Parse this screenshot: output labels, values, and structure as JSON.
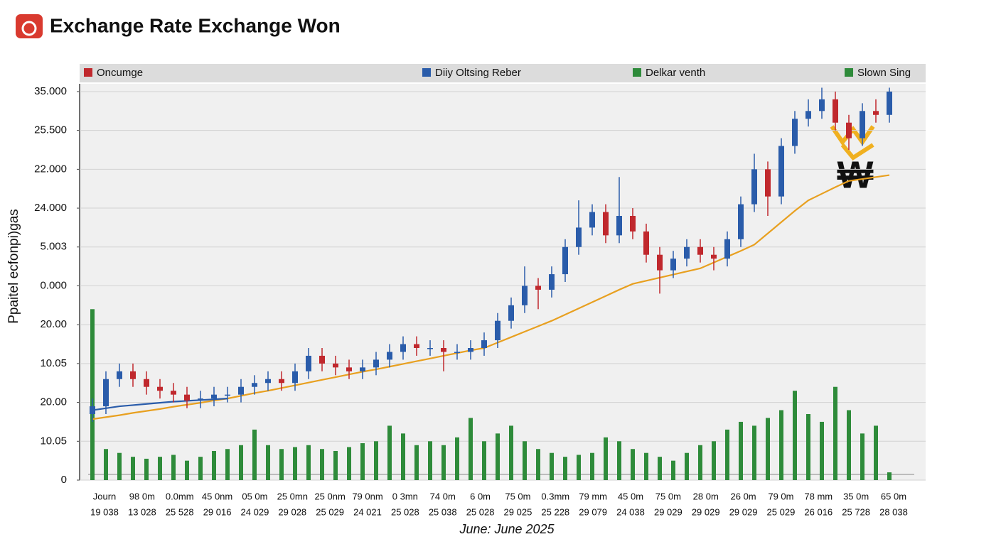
{
  "chart_data": {
    "type": "candlestick",
    "title": "Exchange Rate Exchange Won",
    "ylabel": "Ppaitel ecfonpi)gas",
    "xlabel": "June: June 2025",
    "annotation": "₩",
    "legend": [
      {
        "name": "Oncumge",
        "color": "#c0282d"
      },
      {
        "name": "Diiy Oltsing Reber",
        "color": "#2a5caa"
      },
      {
        "name": "Delkar venth",
        "color": "#2e8b3a"
      },
      {
        "name": "Slown Sing",
        "color": "#2e8b3a"
      }
    ],
    "ylim": [
      0,
      10.2
    ],
    "yticks": [
      {
        "value": 0,
        "label": "0"
      },
      {
        "value": 1,
        "label": "10.05"
      },
      {
        "value": 2,
        "label": "20.00"
      },
      {
        "value": 3,
        "label": "10.05"
      },
      {
        "value": 4,
        "label": "20.00"
      },
      {
        "value": 5,
        "label": "0.000"
      },
      {
        "value": 6,
        "label": "5.003"
      },
      {
        "value": 7,
        "label": "24.000"
      },
      {
        "value": 8,
        "label": "22.000"
      },
      {
        "value": 9,
        "label": "25.500"
      },
      {
        "value": 10,
        "label": "35.000"
      }
    ],
    "grid": true,
    "xtick_rows": [
      [
        "Journ",
        "98 0m",
        "0.0mm",
        "45 0nm",
        "05 0m",
        "25 0mn",
        "25 0nm",
        "79 0nm",
        "0 3mn",
        "74 0m",
        "6 0m",
        "75 0m",
        "0.3mm",
        "79 mm",
        "45 0m",
        "75 0m",
        "28 0m",
        "26 0m",
        "79 0m",
        "78 mm",
        "35 0m",
        "65 0m"
      ],
      [
        "19 038",
        "13 028",
        "25 528",
        "29 016",
        "24 029",
        "29 028",
        "25 029",
        "24 021",
        "25 028",
        "25 038",
        "25 028",
        "29 025",
        "25 228",
        "29 079",
        "24 038",
        "29 029",
        "29 029",
        "29 029",
        "25 029",
        "26 016",
        "25 728",
        "28 038"
      ]
    ],
    "up_color": "#2a5caa",
    "down_color": "#c0282d",
    "open": [
      1.7,
      1.9,
      2.6,
      2.8,
      2.6,
      2.4,
      2.3,
      2.2,
      2.05,
      2.1,
      2.2,
      2.2,
      2.4,
      2.5,
      2.6,
      2.5,
      2.8,
      3.2,
      3.0,
      2.9,
      2.8,
      2.9,
      3.1,
      3.3,
      3.5,
      3.4,
      3.4,
      3.3,
      3.3,
      3.4,
      3.6,
      4.1,
      4.5,
      5.0,
      4.9,
      5.3,
      6.0,
      6.5,
      6.9,
      6.3,
      6.8,
      6.4,
      5.8,
      5.4,
      5.7,
      6.0,
      5.8,
      5.7,
      6.2,
      7.1,
      8.0,
      7.3,
      8.6,
      9.3,
      9.5,
      9.8,
      9.2,
      8.8,
      9.5,
      9.4
    ],
    "high": [
      2.1,
      2.8,
      3.0,
      3.0,
      2.8,
      2.6,
      2.5,
      2.4,
      2.3,
      2.4,
      2.4,
      2.6,
      2.7,
      2.8,
      2.8,
      3.0,
      3.4,
      3.4,
      3.2,
      3.1,
      3.1,
      3.3,
      3.5,
      3.7,
      3.7,
      3.6,
      3.6,
      3.5,
      3.6,
      3.8,
      4.3,
      4.7,
      5.5,
      5.2,
      5.5,
      6.2,
      7.2,
      7.1,
      7.1,
      7.8,
      7.0,
      6.6,
      6.0,
      5.9,
      6.2,
      6.2,
      6.0,
      6.4,
      7.3,
      8.4,
      8.2,
      8.8,
      9.5,
      9.8,
      10.1,
      10.0,
      9.4,
      9.7,
      9.8,
      10.1
    ],
    "low": [
      1.5,
      1.7,
      2.4,
      2.4,
      2.2,
      2.1,
      2.0,
      1.85,
      1.85,
      1.9,
      2.0,
      2.0,
      2.2,
      2.3,
      2.3,
      2.3,
      2.6,
      2.8,
      2.7,
      2.6,
      2.6,
      2.7,
      2.9,
      3.1,
      3.2,
      3.2,
      2.8,
      3.1,
      3.1,
      3.2,
      3.4,
      3.9,
      4.3,
      4.4,
      4.7,
      5.1,
      5.8,
      6.3,
      6.1,
      6.1,
      6.2,
      5.6,
      4.8,
      5.2,
      5.5,
      5.6,
      5.4,
      5.5,
      6.0,
      6.9,
      6.8,
      7.1,
      8.4,
      9.1,
      9.3,
      9.0,
      8.5,
      8.6,
      9.2,
      9.2
    ],
    "close": [
      1.9,
      2.6,
      2.8,
      2.6,
      2.4,
      2.3,
      2.2,
      2.05,
      2.1,
      2.2,
      2.2,
      2.4,
      2.5,
      2.6,
      2.5,
      2.8,
      3.2,
      3.0,
      2.9,
      2.8,
      2.9,
      3.1,
      3.3,
      3.5,
      3.4,
      3.4,
      3.3,
      3.3,
      3.4,
      3.6,
      4.1,
      4.5,
      5.0,
      4.9,
      5.3,
      6.0,
      6.5,
      6.9,
      6.3,
      6.8,
      6.4,
      5.8,
      5.4,
      5.7,
      6.0,
      5.8,
      5.7,
      6.2,
      7.1,
      8.0,
      7.3,
      8.6,
      9.3,
      9.5,
      9.8,
      9.2,
      8.8,
      9.5,
      9.4,
      10.0
    ],
    "volume": {
      "color": "#2e8b3a",
      "values": [
        4.4,
        0.8,
        0.7,
        0.6,
        0.55,
        0.6,
        0.65,
        0.5,
        0.6,
        0.75,
        0.8,
        0.9,
        1.3,
        0.9,
        0.8,
        0.85,
        0.9,
        0.8,
        0.75,
        0.85,
        0.95,
        1.0,
        1.4,
        1.2,
        0.9,
        1.0,
        0.9,
        1.1,
        1.6,
        1.0,
        1.2,
        1.4,
        1.0,
        0.8,
        0.7,
        0.6,
        0.65,
        0.7,
        1.1,
        1.0,
        0.8,
        0.7,
        0.6,
        0.5,
        0.7,
        0.9,
        1.0,
        1.3,
        1.5,
        1.4,
        1.6,
        1.8,
        2.3,
        1.7,
        1.5,
        2.4,
        1.8,
        1.2,
        1.4,
        0.2
      ]
    },
    "lines": [
      {
        "color": "#e8a020",
        "values": [
          1.57,
          1.62,
          1.67,
          1.73,
          1.78,
          1.83,
          1.89,
          1.94,
          1.99,
          2.05,
          2.1,
          2.17,
          2.24,
          2.3,
          2.37,
          2.44,
          2.51,
          2.58,
          2.65,
          2.72,
          2.79,
          2.85,
          2.92,
          2.99,
          3.06,
          3.13,
          3.2,
          3.27,
          3.34,
          3.4,
          3.54,
          3.68,
          3.82,
          3.96,
          4.1,
          4.26,
          4.42,
          4.58,
          4.74,
          4.9,
          5.05,
          5.13,
          5.21,
          5.29,
          5.37,
          5.45,
          5.6,
          5.75,
          5.9,
          6.06,
          6.35,
          6.64,
          6.93,
          7.2,
          7.37,
          7.54,
          7.7,
          7.75,
          7.8,
          7.85
        ]
      },
      {
        "color": "#2a5caa",
        "values": [
          1.8,
          1.85,
          1.9,
          1.93,
          1.96,
          1.99,
          2.02,
          2.04,
          2.06,
          2.08,
          2.1,
          null,
          null,
          null,
          null,
          null,
          null,
          null,
          null,
          null,
          null,
          null,
          null,
          null,
          null,
          null,
          null,
          null,
          null,
          null,
          null,
          null,
          null,
          null,
          null,
          null,
          null,
          null,
          null,
          null,
          null,
          null,
          null,
          null,
          null,
          null,
          null,
          null,
          null,
          null,
          null,
          null,
          null,
          null,
          null,
          null,
          null,
          null,
          null,
          null
        ]
      }
    ]
  }
}
